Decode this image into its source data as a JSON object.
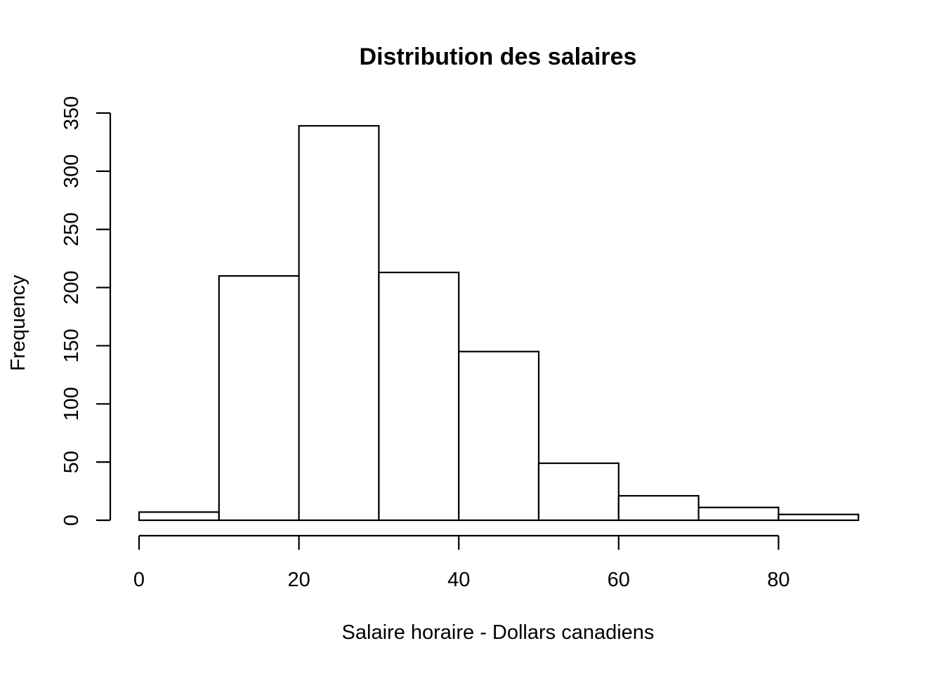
{
  "chart_data": {
    "type": "bar",
    "title": "Distribution des salaires",
    "xlabel": "Salaire horaire - Dollars canadiens",
    "ylabel": "Frequency",
    "bins": [
      {
        "from": 0,
        "to": 10,
        "count": 7
      },
      {
        "from": 10,
        "to": 20,
        "count": 210
      },
      {
        "from": 20,
        "to": 30,
        "count": 339
      },
      {
        "from": 30,
        "to": 40,
        "count": 213
      },
      {
        "from": 40,
        "to": 50,
        "count": 145
      },
      {
        "from": 50,
        "to": 60,
        "count": 49
      },
      {
        "from": 60,
        "to": 70,
        "count": 21
      },
      {
        "from": 70,
        "to": 80,
        "count": 11
      },
      {
        "from": 80,
        "to": 90,
        "count": 5
      }
    ],
    "x_ticks": [
      0,
      20,
      40,
      60,
      80
    ],
    "y_ticks": [
      0,
      50,
      100,
      150,
      200,
      250,
      300,
      350
    ],
    "xlim": [
      0,
      90
    ],
    "ylim": [
      0,
      350
    ],
    "grid": false,
    "legend": "none",
    "colors": {
      "bar_fill": "#ffffff",
      "bar_stroke": "#000000"
    }
  }
}
